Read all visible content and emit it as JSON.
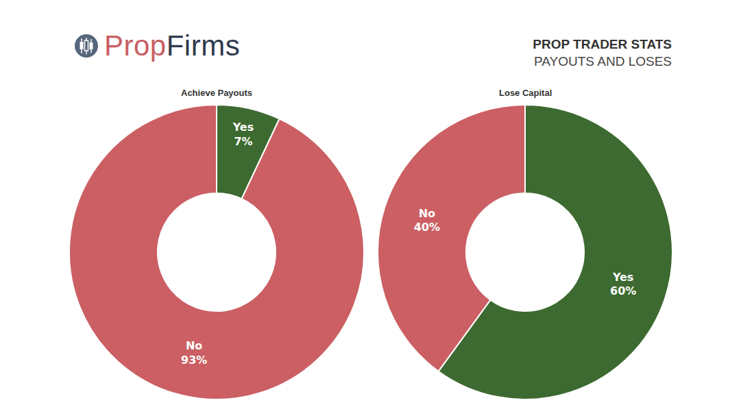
{
  "header": {
    "logo": [
      "Prop",
      "Firms"
    ],
    "title": "PROP TRADER STATS",
    "subtitle": "PAYOUTS AND LOSES"
  },
  "chart_data": [
    {
      "type": "pie",
      "title": "Achieve Payouts",
      "categories": [
        "Yes",
        "No"
      ],
      "values": [
        7,
        93
      ],
      "value_labels": [
        "7%",
        "93%"
      ],
      "colors": [
        "#3d6a30",
        "#cb5f63"
      ],
      "data_labels": true,
      "legend": false
    },
    {
      "type": "pie",
      "title": "Lose Capital",
      "categories": [
        "Yes",
        "No"
      ],
      "values": [
        60,
        40
      ],
      "value_labels": [
        "60%",
        "40%"
      ],
      "colors": [
        "#3d6a30",
        "#cb5f63"
      ],
      "data_labels": true,
      "legend": false
    }
  ]
}
